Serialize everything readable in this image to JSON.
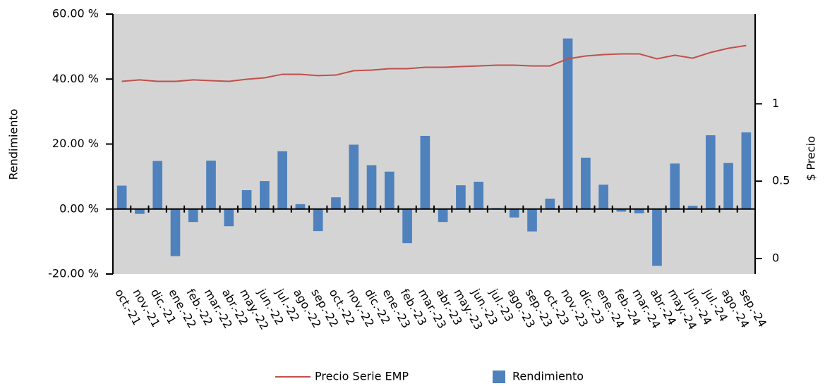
{
  "chart_data": {
    "type": "bar_line",
    "y_axis_label": "Rendimiento",
    "y2_axis_label": "$ Precio",
    "categories": [
      "oct.-21",
      "nov.-21",
      "dic.-21",
      "ene.-22",
      "feb.-22",
      "mar.-22",
      "abr.-22",
      "may.-22",
      "jun.-22",
      "jul.-22",
      "ago.-22",
      "sep.-22",
      "oct.-22",
      "nov.-22",
      "dic.-22",
      "ene.-23",
      "feb.-23",
      "mar.-23",
      "abr.-23",
      "may.-23",
      "jun.-23",
      "jul.-23",
      "ago.-23",
      "sep.-23",
      "oct.-23",
      "nov.-23",
      "dic.-23",
      "ene.-24",
      "feb.-24",
      "mar.-24",
      "abr.-24",
      "may.-24",
      "jun.-24",
      "jul.-24",
      "ago.-24",
      "sep.-24"
    ],
    "series": [
      {
        "name": "Precio Serie EMP",
        "color": "#c0504d",
        "axis": "y2",
        "kind": "line",
        "values": [
          1.145,
          1.155,
          1.145,
          1.145,
          1.155,
          1.15,
          1.145,
          1.159,
          1.168,
          1.191,
          1.191,
          1.182,
          1.186,
          1.214,
          1.218,
          1.227,
          1.227,
          1.236,
          1.236,
          1.241,
          1.245,
          1.25,
          1.25,
          1.245,
          1.245,
          1.291,
          1.309,
          1.318,
          1.323,
          1.323,
          1.291,
          1.314,
          1.295,
          1.332,
          1.359,
          1.377
        ]
      },
      {
        "name": "Rendimiento",
        "color": "#4f81bd",
        "kind": "bar",
        "values": [
          7.2,
          -1.5,
          14.8,
          -14.5,
          -4,
          14.9,
          -5.3,
          5.8,
          8.6,
          17.8,
          1.5,
          -6.8,
          3.6,
          19.8,
          13.5,
          11.5,
          -10.5,
          22.5,
          -4,
          7.3,
          8.4,
          0.3,
          -2.6,
          -6.9,
          3.2,
          52.5,
          15.8,
          7.5,
          -0.8,
          -1.3,
          -17.5,
          14,
          1,
          22.7,
          14.2,
          23.6
        ]
      }
    ],
    "ylim": [
      -20,
      60
    ],
    "yticks": [
      {
        "value": -20,
        "label": "-20.00 %"
      },
      {
        "value": 0,
        "label": "0.00 %"
      },
      {
        "value": 20,
        "label": "20.00 %"
      },
      {
        "value": 40,
        "label": "40.00 %"
      },
      {
        "value": 60,
        "label": "60.00 %"
      }
    ],
    "y2lim": [
      -0.1,
      1.58
    ],
    "y2ticks": [
      0,
      0.5,
      1
    ],
    "background": "#d4d4d4",
    "legend": "bottom"
  }
}
